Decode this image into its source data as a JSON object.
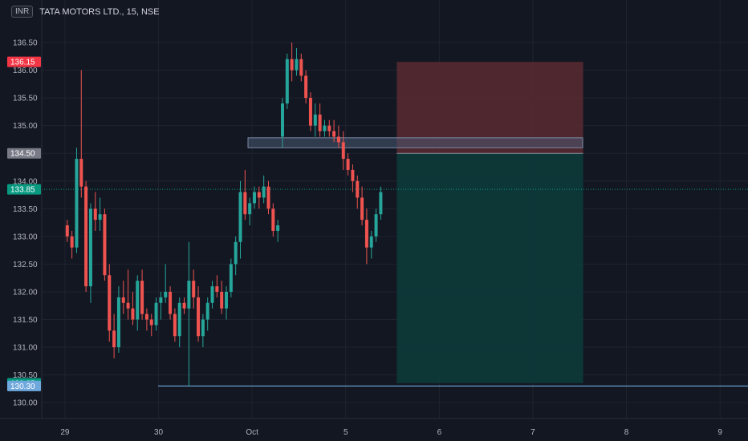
{
  "header": {
    "currency": "INR",
    "symbol": "TATA MOTORS LTD., 15, NSE"
  },
  "colors": {
    "background": "#131722",
    "up": "#26a69a",
    "down": "#ef5350",
    "grid": "#1f2330",
    "stop_zone": "#5a2a30",
    "target_zone": "#0d3a3a",
    "range_box": "#4a5a72",
    "support_line": "#6fa8dc"
  },
  "chart_data": {
    "type": "candlestick",
    "title": "TATA MOTORS LTD., 15, NSE",
    "y_ticks": [
      "136.50",
      "136.00",
      "135.50",
      "135.00",
      "134.50",
      "134.00",
      "133.50",
      "133.00",
      "132.50",
      "132.00",
      "131.50",
      "131.00",
      "130.50",
      "130.00"
    ],
    "x_ticks": [
      "29",
      "30",
      "Oct",
      "5",
      "6",
      "7",
      "8",
      "9"
    ],
    "ylim": [
      129.9,
      136.9
    ],
    "price_tags": [
      {
        "label": "136.15",
        "value": 136.15,
        "color": "#f23645"
      },
      {
        "label": "134.50",
        "value": 134.5,
        "color": "#787b86"
      },
      {
        "label": "133.85",
        "value": 133.85,
        "color": "#089981"
      },
      {
        "label": "130.35",
        "value": 130.35,
        "color": "#089981"
      },
      {
        "label": "130.30",
        "value": 130.3,
        "color": "#6fa8dc"
      }
    ],
    "position": {
      "entry": 134.5,
      "stop": 136.15,
      "target": 130.35,
      "start_bar": 67,
      "end_bar": 107
    },
    "range_box": {
      "low": 134.6,
      "high": 134.78,
      "start_bar": 47,
      "end_bar": 116
    },
    "support_line": {
      "value": 130.3,
      "start_bar": 26
    },
    "x_tick_bars": [
      5,
      25,
      45,
      65,
      85,
      105,
      125,
      145
    ],
    "candles": [
      [
        133.2,
        133.3,
        132.9,
        133.0
      ],
      [
        133.0,
        133.1,
        132.6,
        132.8
      ],
      [
        132.8,
        134.6,
        132.7,
        134.4
      ],
      [
        134.4,
        136.0,
        133.7,
        133.9
      ],
      [
        133.9,
        134.0,
        132.0,
        132.1
      ],
      [
        132.1,
        133.6,
        131.8,
        133.5
      ],
      [
        133.5,
        133.8,
        133.1,
        133.3
      ],
      [
        133.3,
        133.7,
        133.1,
        133.4
      ],
      [
        133.4,
        133.5,
        132.2,
        132.3
      ],
      [
        132.3,
        132.5,
        131.1,
        131.3
      ],
      [
        131.3,
        131.6,
        130.8,
        131.0
      ],
      [
        131.0,
        132.1,
        130.9,
        131.9
      ],
      [
        131.9,
        132.2,
        131.6,
        131.8
      ],
      [
        131.8,
        132.4,
        131.5,
        131.7
      ],
      [
        131.7,
        132.0,
        131.4,
        131.5
      ],
      [
        131.5,
        132.3,
        131.3,
        132.2
      ],
      [
        132.2,
        132.4,
        131.5,
        131.6
      ],
      [
        131.6,
        131.7,
        131.3,
        131.5
      ],
      [
        131.5,
        131.6,
        131.2,
        131.4
      ],
      [
        131.4,
        131.9,
        131.3,
        131.8
      ],
      [
        131.8,
        132.0,
        131.5,
        131.9
      ],
      [
        131.9,
        132.5,
        131.8,
        132.0
      ],
      [
        132.0,
        132.1,
        131.5,
        131.6
      ],
      [
        131.6,
        131.7,
        131.1,
        131.2
      ],
      [
        131.2,
        131.9,
        131.0,
        131.8
      ],
      [
        131.8,
        131.9,
        131.6,
        131.7
      ],
      [
        131.7,
        132.9,
        130.3,
        132.2
      ],
      [
        132.2,
        132.4,
        131.7,
        131.9
      ],
      [
        131.9,
        132.1,
        131.1,
        131.2
      ],
      [
        131.2,
        131.6,
        131.0,
        131.5
      ],
      [
        131.5,
        131.9,
        131.3,
        131.8
      ],
      [
        131.8,
        132.2,
        131.7,
        132.1
      ],
      [
        132.1,
        132.3,
        131.9,
        132.0
      ],
      [
        132.0,
        132.2,
        131.6,
        131.7
      ],
      [
        131.7,
        132.1,
        131.5,
        132.0
      ],
      [
        132.0,
        132.6,
        131.9,
        132.5
      ],
      [
        132.5,
        133.0,
        132.3,
        132.9
      ],
      [
        132.9,
        134.0,
        132.6,
        133.8
      ],
      [
        133.8,
        134.2,
        133.3,
        133.4
      ],
      [
        133.4,
        133.7,
        133.2,
        133.6
      ],
      [
        133.6,
        133.9,
        133.5,
        133.8
      ],
      [
        133.8,
        133.9,
        133.5,
        133.7
      ],
      [
        133.7,
        134.1,
        133.6,
        133.9
      ],
      [
        133.9,
        134.0,
        133.4,
        133.5
      ],
      [
        133.5,
        133.6,
        133.0,
        133.1
      ],
      [
        133.1,
        133.3,
        132.9,
        133.2
      ],
      [
        134.8,
        135.5,
        134.6,
        135.4
      ],
      [
        135.4,
        136.3,
        135.3,
        136.2
      ],
      [
        136.2,
        136.5,
        135.8,
        136.0
      ],
      [
        136.0,
        136.4,
        135.9,
        136.2
      ],
      [
        136.2,
        136.3,
        135.8,
        135.9
      ],
      [
        135.9,
        136.0,
        135.4,
        135.5
      ],
      [
        135.5,
        135.6,
        134.9,
        135.0
      ],
      [
        135.0,
        135.4,
        134.8,
        135.2
      ],
      [
        135.2,
        135.4,
        134.8,
        134.9
      ],
      [
        134.9,
        135.1,
        134.8,
        135.0
      ],
      [
        135.0,
        135.1,
        134.8,
        134.9
      ],
      [
        134.9,
        135.1,
        134.7,
        134.8
      ],
      [
        134.8,
        135.0,
        134.6,
        134.7
      ],
      [
        134.7,
        134.9,
        134.2,
        134.4
      ],
      [
        134.4,
        134.5,
        134.1,
        134.2
      ],
      [
        134.2,
        134.3,
        133.8,
        134.0
      ],
      [
        134.0,
        134.1,
        133.5,
        133.7
      ],
      [
        133.7,
        133.9,
        133.2,
        133.3
      ],
      [
        133.3,
        133.5,
        132.5,
        132.8
      ],
      [
        132.8,
        133.1,
        132.6,
        133.0
      ],
      [
        133.0,
        133.5,
        132.9,
        133.4
      ],
      [
        133.4,
        133.9,
        133.3,
        133.8
      ]
    ]
  }
}
